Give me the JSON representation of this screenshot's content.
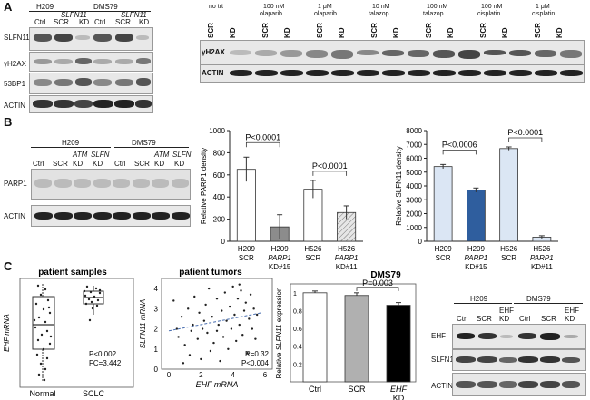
{
  "panels": {
    "a": "A",
    "b": "B",
    "c": "C"
  },
  "panel_a_left": {
    "groups": [
      "H209",
      "DMS79"
    ],
    "slfn_label": "SLFN11",
    "lanes": [
      "Ctrl",
      "SCR",
      "KD",
      "Ctrl",
      "SCR",
      "KD"
    ],
    "rows": [
      "SLFN11",
      "γH2AX",
      "53BP1",
      "ACTIN"
    ]
  },
  "panel_a_right": {
    "lanes": [
      {
        "cond": "no trt",
        "sub": "",
        "a": "SCR",
        "b": "KD"
      },
      {
        "cond": "100 nM",
        "sub": "olaparib",
        "a": "SCR",
        "b": "KD"
      },
      {
        "cond": "1 μM",
        "sub": "olaparib",
        "a": "SCR",
        "b": "KD"
      },
      {
        "cond": "10 nM",
        "sub": "talazop",
        "a": "SCR",
        "b": "KD"
      },
      {
        "cond": "100 nM",
        "sub": "talazop",
        "a": "SCR",
        "b": "KD"
      },
      {
        "cond": "100 nM",
        "sub": "cisplatin",
        "a": "SCR",
        "b": "KD"
      },
      {
        "cond": "1 μM",
        "sub": "cisplatin",
        "a": "SCR",
        "b": "KD"
      }
    ],
    "rows": [
      "γH2AX",
      "ACTIN"
    ]
  },
  "panel_b_blot": {
    "groups": [
      "H209",
      "DMS79"
    ],
    "upper": [
      "ATM",
      "SLFN",
      "ATM",
      "SLFN"
    ],
    "lanes": [
      "Ctrl",
      "SCR",
      "KD",
      "KD",
      "Ctrl",
      "SCR",
      "KD",
      "KD"
    ],
    "rows": [
      "PARP1",
      "ACTIN"
    ]
  },
  "chart_parp1": {
    "type": "bar",
    "ylabel": "Relative PARP1 density",
    "ylim": [
      0,
      1000
    ],
    "yticks": [
      "0",
      "200",
      "400",
      "600",
      "800",
      "1000"
    ],
    "categories": [
      {
        "l1": "H209",
        "l2": "SCR",
        "it": false
      },
      {
        "l1": "H209",
        "l2": "PARP1",
        "l3": "KD#15",
        "it": true
      },
      {
        "l1": "H526",
        "l2": "SCR",
        "it": false
      },
      {
        "l1": "H526",
        "l2": "PARP1",
        "l3": "KD#11",
        "it": true
      }
    ],
    "values": [
      650,
      130,
      470,
      260
    ],
    "errors": [
      110,
      110,
      80,
      60
    ],
    "colors": [
      "#ffffff",
      "#8c8c8c",
      "#ffffff",
      "#d8d8d8"
    ],
    "pvalues": [
      "P<0.0001",
      "P<0.0001"
    ]
  },
  "chart_slfn11": {
    "type": "bar",
    "ylabel": "Relative SLFN11 density",
    "ylim": [
      0,
      8000
    ],
    "yticks": [
      "0",
      "1000",
      "2000",
      "3000",
      "4000",
      "5000",
      "6000",
      "7000",
      "8000"
    ],
    "categories": [
      {
        "l1": "H209",
        "l2": "SCR",
        "it": false
      },
      {
        "l1": "H209",
        "l2": "PARP1",
        "l3": "KD#15",
        "it": true
      },
      {
        "l1": "H526",
        "l2": "SCR",
        "it": false
      },
      {
        "l1": "H526",
        "l2": "PARP1",
        "l3": "KD#11",
        "it": true
      }
    ],
    "values": [
      5400,
      3700,
      6700,
      300
    ],
    "errors": [
      150,
      150,
      120,
      100
    ],
    "colors": [
      "#dbe6f4",
      "#2f5e9e",
      "#dbe6f4",
      "#dbe6f4"
    ],
    "pvalues": [
      "P<0.0006",
      "P<0.0001"
    ]
  },
  "chart_boxplot": {
    "type": "box",
    "title": "patient samples",
    "ylabel": "EHF mRNA",
    "categories": [
      "Normal",
      "SCLC"
    ],
    "stats": "P<0.002",
    "fc": "FC=3.442"
  },
  "chart_scatter": {
    "type": "scatter",
    "title": "patient tumors",
    "ylabel": "SLFN11 mRNA",
    "xlabel": "EHF mRNA",
    "xticks": [
      "0",
      "2",
      "4",
      "6"
    ],
    "yticks": [
      "0",
      "1",
      "2",
      "3",
      "4"
    ],
    "r": "R=0.32",
    "p": "P<0.004"
  },
  "chart_dms79": {
    "type": "bar",
    "title": "DMS79",
    "ylabel_pre": "Relative ",
    "ylabel_gene": "SLFN11",
    "ylabel_post": " expression",
    "yticks": [
      "0.2",
      "0.4",
      "0.6",
      "0.8",
      "1"
    ],
    "categories": [
      "Ctrl",
      "SCR",
      "EHF"
    ],
    "sub": [
      "",
      "",
      "KD"
    ],
    "values": [
      1.0,
      0.97,
      0.86
    ],
    "errors": [
      0.02,
      0.03,
      0.03
    ],
    "colors": [
      "#ffffff",
      "#b0b0b0",
      "#000000"
    ],
    "pvalue": "P=0.003"
  },
  "panel_c_blot": {
    "groups": [
      "H209",
      "DMS79"
    ],
    "lanes": [
      "Ctrl",
      "SCR",
      "KD",
      "Ctrl",
      "SCR",
      "KD"
    ],
    "upper": [
      "EHF",
      "EHF"
    ],
    "rows": [
      "EHF",
      "SLFN11",
      "ACTIN"
    ]
  }
}
